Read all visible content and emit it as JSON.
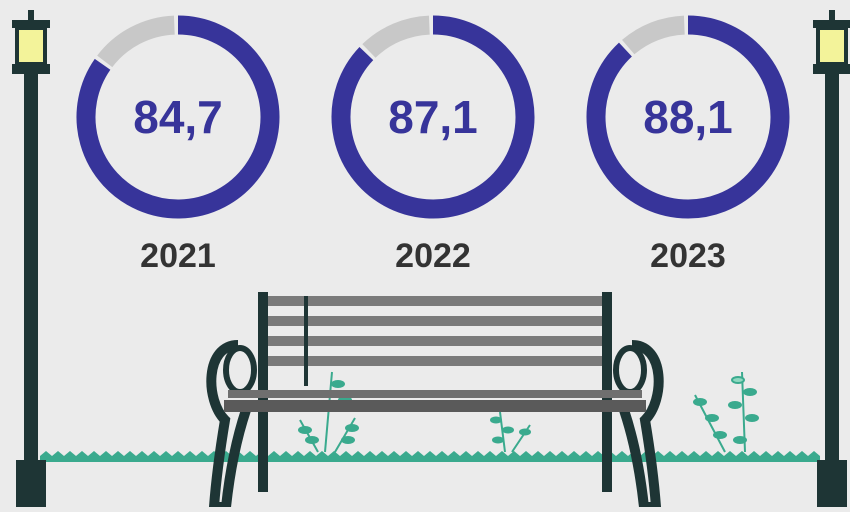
{
  "chart_data": {
    "type": "donut",
    "categories": [
      "2021",
      "2022",
      "2023"
    ],
    "values": [
      84.7,
      87.1,
      88.1
    ],
    "value_labels": [
      "84,7",
      "87,1",
      "88,1"
    ],
    "ylim": [
      0,
      100
    ],
    "color": "#37349a",
    "track_color": "#c8c8c8"
  }
}
